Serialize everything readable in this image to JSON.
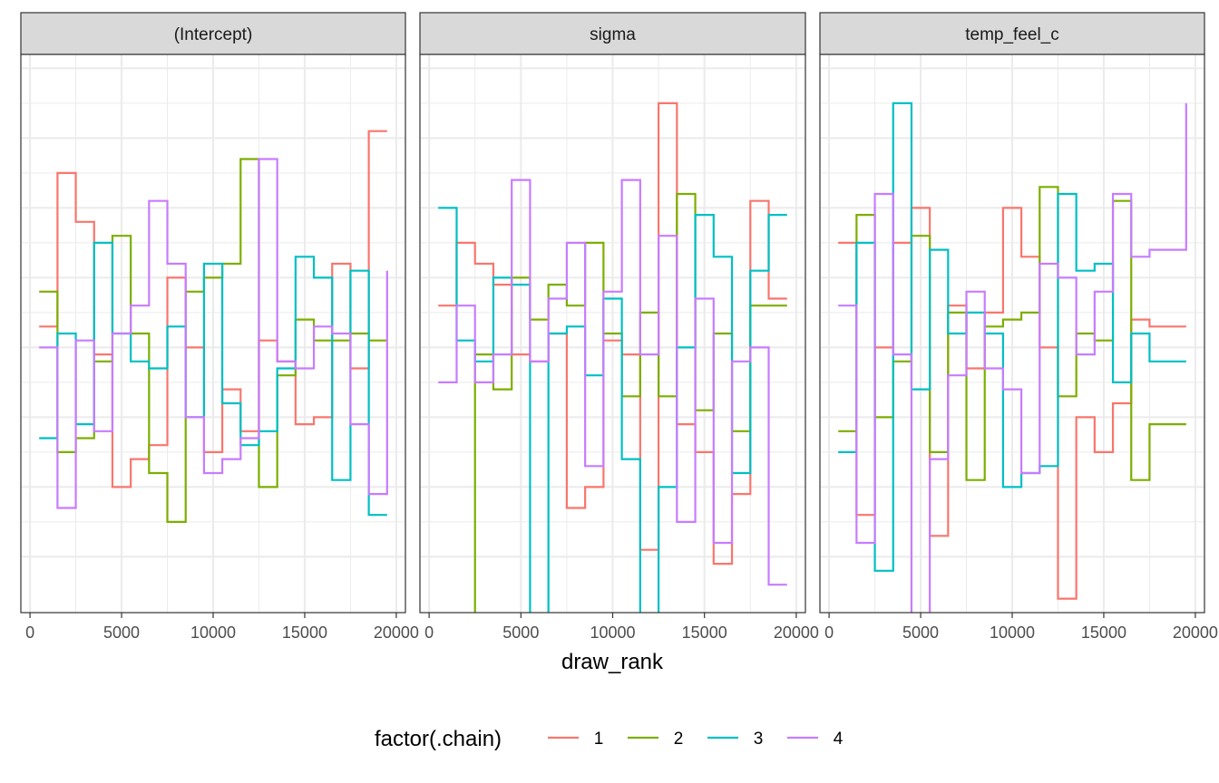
{
  "chart_data": {
    "type": "line",
    "step": true,
    "xlabel": "draw_rank",
    "ylabel": "",
    "x_ticks": [
      0,
      5000,
      10000,
      15000,
      20000
    ],
    "x_tick_labels": [
      "0",
      "5000",
      "10000",
      "15000",
      "20000"
    ],
    "xlim": [
      -500,
      20500
    ],
    "ylim": [
      0.2,
      8.2
    ],
    "grid": true,
    "theme": "bw",
    "legend": {
      "title": "factor(.chain)",
      "position": "bottom",
      "entries": [
        "1",
        "2",
        "3",
        "4"
      ]
    },
    "colors": {
      "1": "#F8766D",
      "2": "#7CAE00",
      "3": "#00BFC4",
      "4": "#C77CFF"
    },
    "x": [
      500,
      1500,
      2500,
      3500,
      4500,
      5500,
      6500,
      7500,
      8500,
      9500,
      10500,
      11500,
      12500,
      13500,
      14500,
      15500,
      16500,
      17500,
      18500,
      19500
    ],
    "panels": [
      {
        "title": "(Intercept)",
        "series": [
          {
            "name": "1",
            "values": [
              4.3,
              6.5,
              5.8,
              3.9,
              2.0,
              2.4,
              2.6,
              5.0,
              4.0,
              2.5,
              3.4,
              2.8,
              4.1,
              3.8,
              2.9,
              3.0,
              5.2,
              3.7,
              7.1,
              7.1
            ]
          },
          {
            "name": "2",
            "values": [
              4.8,
              2.5,
              2.7,
              3.8,
              5.6,
              4.2,
              2.2,
              1.5,
              4.8,
              5.0,
              5.2,
              6.7,
              2.0,
              3.6,
              4.4,
              4.1,
              4.1,
              4.2,
              4.1,
              4.1
            ]
          },
          {
            "name": "3",
            "values": [
              2.7,
              4.2,
              2.9,
              5.5,
              4.2,
              3.8,
              3.7,
              4.3,
              3.0,
              5.2,
              3.2,
              2.6,
              2.8,
              3.7,
              5.3,
              5.0,
              2.1,
              5.1,
              1.6,
              1.6
            ]
          },
          {
            "name": "4",
            "values": [
              4.0,
              1.7,
              4.1,
              2.8,
              4.2,
              4.6,
              6.1,
              5.2,
              3.0,
              2.2,
              2.4,
              2.7,
              6.7,
              3.8,
              3.7,
              4.3,
              4.2,
              2.9,
              1.9,
              5.1
            ]
          }
        ]
      },
      {
        "title": "sigma",
        "series": [
          {
            "name": "1",
            "values": [
              4.6,
              5.5,
              5.2,
              4.9,
              3.9,
              3.8,
              4.2,
              1.7,
              2.0,
              4.1,
              3.9,
              1.1,
              7.5,
              2.9,
              2.5,
              0.9,
              1.9,
              6.1,
              4.7,
              4.7
            ]
          },
          {
            "name": "2",
            "values": [
              -0.1,
              -0.2,
              3.9,
              3.4,
              5.0,
              4.4,
              4.9,
              4.6,
              5.5,
              4.2,
              3.3,
              4.5,
              3.3,
              6.2,
              3.1,
              4.2,
              2.8,
              4.6,
              4.6,
              4.6
            ]
          },
          {
            "name": "3",
            "values": [
              6.0,
              4.1,
              3.8,
              5.0,
              4.9,
              -0.9,
              4.2,
              4.3,
              3.6,
              4.7,
              2.4,
              -0.5,
              2.0,
              4.0,
              5.9,
              5.3,
              2.2,
              5.1,
              5.9,
              5.9
            ]
          },
          {
            "name": "4",
            "values": [
              3.5,
              4.6,
              3.5,
              3.9,
              6.4,
              3.8,
              4.7,
              5.5,
              2.3,
              4.8,
              6.4,
              3.9,
              5.6,
              1.5,
              4.7,
              1.2,
              3.8,
              4.0,
              0.6,
              0.6
            ]
          }
        ]
      },
      {
        "title": "temp_feel_c",
        "series": [
          {
            "name": "1",
            "values": [
              5.5,
              1.6,
              4.0,
              5.5,
              6.0,
              1.3,
              4.6,
              3.7,
              4.5,
              6.0,
              5.3,
              4.0,
              0.4,
              3.0,
              2.5,
              3.2,
              4.4,
              4.3,
              4.3,
              4.3
            ]
          },
          {
            "name": "2",
            "values": [
              2.8,
              5.9,
              3.0,
              3.8,
              5.6,
              2.5,
              4.5,
              2.1,
              4.3,
              4.4,
              4.5,
              6.3,
              3.3,
              4.2,
              4.1,
              6.1,
              2.1,
              2.9,
              2.9,
              2.9
            ]
          },
          {
            "name": "3",
            "values": [
              2.5,
              5.5,
              0.8,
              7.5,
              3.4,
              5.4,
              4.2,
              4.5,
              4.2,
              2.0,
              2.2,
              2.3,
              6.2,
              5.1,
              5.2,
              3.5,
              4.2,
              3.8,
              3.8,
              3.8
            ]
          },
          {
            "name": "4",
            "values": [
              4.6,
              1.2,
              6.2,
              3.9,
              0.0,
              2.4,
              3.6,
              4.8,
              3.7,
              3.4,
              2.2,
              5.2,
              5.0,
              3.9,
              4.8,
              6.2,
              5.3,
              5.4,
              5.4,
              7.5
            ]
          }
        ]
      }
    ]
  }
}
